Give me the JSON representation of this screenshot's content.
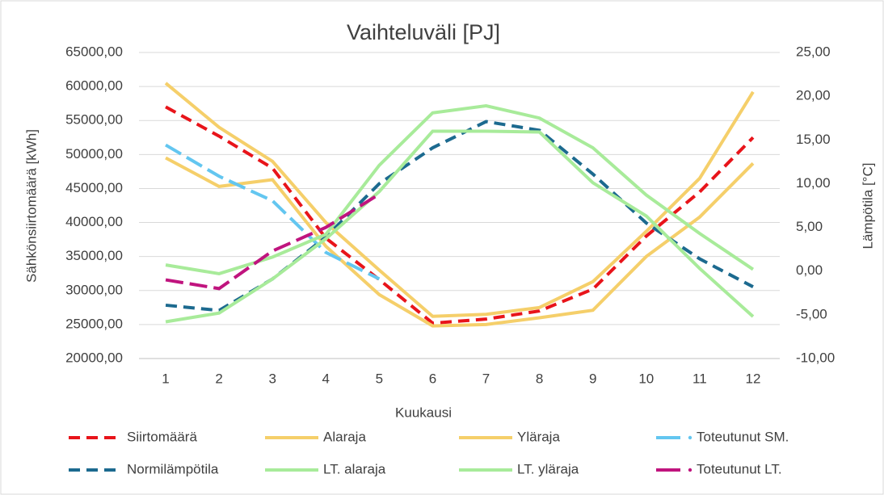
{
  "chart_data": {
    "type": "line",
    "title": "Vaihteluväli [PJ]",
    "x_label": "Kuukausi",
    "y_label": "Sähkönsiirtomäärä [kWh]",
    "y2_label": "Lämpötila [°C]",
    "categories": [
      "1",
      "2",
      "3",
      "4",
      "5",
      "6",
      "7",
      "8",
      "9",
      "10",
      "11",
      "12"
    ],
    "ylim": [
      20000,
      65000
    ],
    "yticks": [
      {
        "value": 20000,
        "label": "20000,00"
      },
      {
        "value": 25000,
        "label": "25000,00"
      },
      {
        "value": 30000,
        "label": "30000,00"
      },
      {
        "value": 35000,
        "label": "35000,00"
      },
      {
        "value": 40000,
        "label": "40000,00"
      },
      {
        "value": 45000,
        "label": "45000,00"
      },
      {
        "value": 50000,
        "label": "50000,00"
      },
      {
        "value": 55000,
        "label": "55000,00"
      },
      {
        "value": 60000,
        "label": "60000,00"
      },
      {
        "value": 65000,
        "label": "65000,00"
      }
    ],
    "y2lim": [
      -10,
      25
    ],
    "y2ticks": [
      {
        "value": -10,
        "label": "-10,00"
      },
      {
        "value": -5,
        "label": "-5,00"
      },
      {
        "value": 0,
        "label": "0,00"
      },
      {
        "value": 5,
        "label": "5,00"
      },
      {
        "value": 10,
        "label": "10,00"
      },
      {
        "value": 15,
        "label": "15,00"
      },
      {
        "value": 20,
        "label": "20,00"
      },
      {
        "value": 25,
        "label": "25,00"
      }
    ],
    "grid": true,
    "legend": "bottom",
    "series": [
      {
        "name": "Siirtomäärä",
        "color": "#e8141a",
        "dash": "dashed",
        "values": [
          57000,
          52700,
          48000,
          37700,
          31600,
          25200,
          25800,
          27000,
          30200,
          38000,
          44500,
          52500
        ]
      },
      {
        "name": "Alaraja",
        "color": "#f5cf6a",
        "dash": "solid",
        "values": [
          49500,
          45300,
          46300,
          36500,
          29400,
          24800,
          25000,
          26000,
          27100,
          35000,
          40800,
          48700
        ]
      },
      {
        "name": "Yläraja",
        "color": "#f5cf6a",
        "dash": "solid",
        "values": [
          60500,
          54000,
          49000,
          40000,
          33000,
          26200,
          26500,
          27500,
          31300,
          38700,
          46500,
          59200
        ]
      },
      {
        "name": "Toteutunut SM.",
        "color": "#63c6f0",
        "dash": "longdash",
        "values": [
          51400,
          46800,
          43200,
          35600,
          31700,
          null,
          null,
          null,
          null,
          null,
          null,
          null
        ]
      },
      {
        "name": "Normilämpötila",
        "color": "#1c6a8f",
        "dash": "dashed",
        "axis": "y2",
        "values": [
          -3.9,
          -4.5,
          -0.9,
          3.9,
          10.0,
          14.1,
          17.1,
          16.1,
          11.1,
          5.5,
          1.4,
          -1.8
        ]
      },
      {
        "name": "LT. alaraja",
        "color": "#a8eb9a",
        "dash": "solid",
        "axis": "y2",
        "values": [
          -5.8,
          -4.8,
          -0.9,
          3.7,
          9.1,
          16.0,
          16.0,
          15.9,
          10.1,
          6.3,
          0.3,
          -5.2
        ]
      },
      {
        "name": "LT. yläraja",
        "color": "#a8eb9a",
        "dash": "solid",
        "axis": "y2",
        "values": [
          0.7,
          -0.3,
          1.6,
          4.2,
          12.1,
          18.1,
          18.9,
          17.5,
          14.1,
          8.7,
          4.3,
          0.2
        ]
      },
      {
        "name": "Toteutunut LT.",
        "color": "#c0147e",
        "dash": "longdash",
        "axis": "y2",
        "values": [
          -1.0,
          -2.0,
          2.3,
          5.0,
          8.8,
          null,
          null,
          null,
          null,
          null,
          null,
          null
        ]
      }
    ]
  }
}
